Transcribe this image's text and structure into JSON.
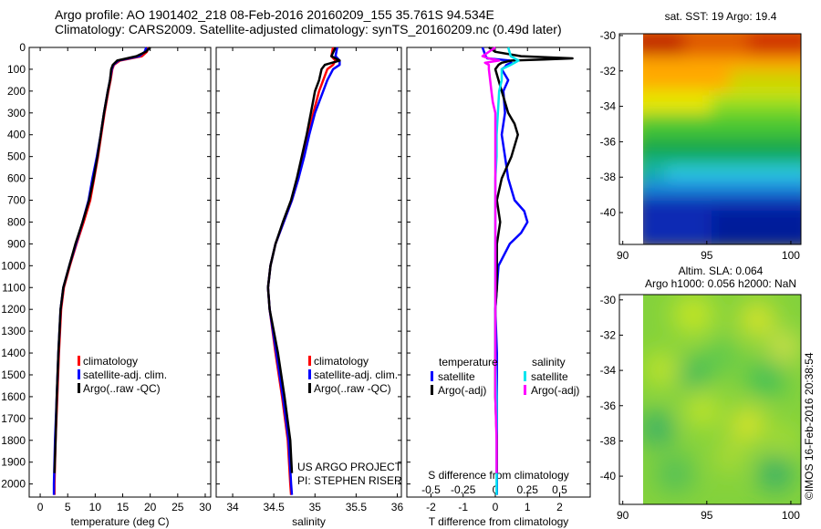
{
  "header": {
    "line1": "Argo profile: AO 1901402_218 08-Feb-2016 20160209_155 35.761S 94.534E",
    "line2": "Climatology: CARS2009. Satellite-adjusted climatology: synTS_20160209.nc (0.49d later)"
  },
  "credit": {
    "project": "US ARGO PROJECT",
    "pi": "PI: STEPHEN RISER",
    "stamp": "©IMOS 16-Feb-2016 20:38:54"
  },
  "colors": {
    "climatology": "#ff0000",
    "satellite": "#0000ff",
    "argo": "#000000",
    "s_satellite": "#00e5ee",
    "s_argo": "#ff00ff"
  },
  "chart_data": [
    {
      "type": "line",
      "xlabel": "temperature (deg C)",
      "xticks": [
        "0",
        "5",
        "10",
        "15",
        "20",
        "25",
        "30"
      ],
      "xlim": [
        -2,
        31
      ],
      "yticks": [
        "0",
        "100",
        "200",
        "300",
        "400",
        "500",
        "600",
        "700",
        "800",
        "900",
        "1000",
        "1100",
        "1200",
        "1300",
        "1400",
        "1500",
        "1600",
        "1700",
        "1800",
        "1900",
        "2000"
      ],
      "ylim": [
        2060,
        0
      ],
      "legend": [
        "climatology",
        "satellite-adj. clim.",
        "Argo(..raw -QC)"
      ],
      "legend_position": "lower-right",
      "series": [
        {
          "name": "climatology",
          "depth": [
            0,
            20,
            40,
            60,
            80,
            100,
            150,
            200,
            300,
            400,
            500,
            600,
            700,
            800,
            900,
            1000,
            1100,
            1200,
            1400,
            1600,
            1800,
            2000,
            2050
          ],
          "values": [
            19.7,
            19.4,
            18.5,
            14.5,
            13.4,
            13.1,
            12.8,
            12.4,
            11.7,
            11.1,
            10.5,
            9.8,
            9.1,
            7.9,
            6.6,
            5.4,
            4.3,
            3.8,
            3.4,
            3.1,
            2.8,
            2.6,
            2.6
          ]
        },
        {
          "name": "satellite-adj. clim.",
          "depth": [
            0,
            20,
            40,
            60,
            80,
            100,
            150,
            200,
            300,
            400,
            500,
            600,
            700,
            800,
            900,
            1000,
            1100,
            1200,
            1400,
            1600,
            1800,
            2000,
            2050
          ],
          "values": [
            19.3,
            19.0,
            18.0,
            14.2,
            13.3,
            13.0,
            12.7,
            12.3,
            11.6,
            11.0,
            10.3,
            9.5,
            8.8,
            7.7,
            6.5,
            5.3,
            4.2,
            3.7,
            3.3,
            3.0,
            2.7,
            2.5,
            2.5
          ]
        },
        {
          "name": "Argo(..raw -QC)",
          "depth": [
            0,
            20,
            40,
            60,
            80,
            100,
            150,
            200,
            300,
            400,
            500,
            600,
            700,
            800,
            900,
            1000,
            1100,
            1200,
            1400,
            1600,
            1800,
            1950
          ],
          "values": [
            20.0,
            19.2,
            17.5,
            14.0,
            13.2,
            12.9,
            12.7,
            12.3,
            11.6,
            11.0,
            10.4,
            9.7,
            8.9,
            7.7,
            6.4,
            5.3,
            4.2,
            3.7,
            3.3,
            3.0,
            2.8,
            2.6
          ]
        }
      ]
    },
    {
      "type": "line",
      "xlabel": "salinity",
      "xticks": [
        "34",
        "34.5",
        "35",
        "35.5",
        "36"
      ],
      "xlim": [
        33.8,
        36.05
      ],
      "yticks": [
        "0",
        "100",
        "200",
        "300",
        "400",
        "500",
        "600",
        "700",
        "800",
        "900",
        "1000",
        "1100",
        "1200",
        "1300",
        "1400",
        "1500",
        "1600",
        "1700",
        "1800",
        "1900",
        "2000"
      ],
      "ylim": [
        2060,
        0
      ],
      "legend": [
        "climatology",
        "satellite-adj. clim.",
        "Argo(..raw -QC)"
      ],
      "legend_position": "lower-right",
      "series": [
        {
          "name": "climatology",
          "depth": [
            0,
            40,
            60,
            80,
            100,
            150,
            200,
            300,
            400,
            500,
            600,
            700,
            800,
            900,
            1000,
            1100,
            1200,
            1400,
            1600,
            1800,
            2000,
            2050
          ],
          "values": [
            35.22,
            35.2,
            35.25,
            35.22,
            35.15,
            35.1,
            35.05,
            34.98,
            34.92,
            34.86,
            34.8,
            34.72,
            34.62,
            34.52,
            34.46,
            34.43,
            34.45,
            34.52,
            34.6,
            34.67,
            34.7,
            34.71
          ]
        },
        {
          "name": "satellite-adj. clim.",
          "depth": [
            0,
            40,
            60,
            80,
            100,
            150,
            200,
            300,
            400,
            500,
            600,
            700,
            800,
            900,
            1000,
            1100,
            1200,
            1400,
            1600,
            1800,
            2000,
            2050
          ],
          "values": [
            35.27,
            35.25,
            35.3,
            35.3,
            35.22,
            35.15,
            35.1,
            35.0,
            34.93,
            34.87,
            34.8,
            34.72,
            34.62,
            34.52,
            34.46,
            34.43,
            34.45,
            34.53,
            34.61,
            34.68,
            34.71,
            34.72
          ]
        },
        {
          "name": "Argo(..raw -QC)",
          "depth": [
            0,
            40,
            60,
            80,
            100,
            150,
            200,
            300,
            400,
            500,
            600,
            700,
            800,
            900,
            1000,
            1100,
            1200,
            1400,
            1600,
            1800,
            1950
          ],
          "values": [
            35.25,
            35.2,
            35.3,
            35.12,
            35.08,
            35.05,
            35.0,
            34.95,
            34.9,
            34.84,
            34.78,
            34.71,
            34.61,
            34.52,
            34.46,
            34.43,
            34.45,
            34.55,
            34.63,
            34.7,
            34.72
          ]
        }
      ]
    },
    {
      "type": "line",
      "xlabel": "T difference from climatology",
      "xticks": [
        "-2",
        "-1",
        "0",
        "1",
        "2"
      ],
      "xlim": [
        -2.75,
        2.95
      ],
      "top_label": "S difference from climatology",
      "top_ticks": [
        "-0.5",
        "-0.25",
        "0",
        "0.25",
        "0.5"
      ],
      "top_lim": [
        -0.6875,
        0.7375
      ],
      "yticks": [
        "0",
        "100",
        "200",
        "300",
        "400",
        "500",
        "600",
        "700",
        "800",
        "900",
        "1000",
        "1100",
        "1200",
        "1300",
        "1400",
        "1500",
        "1600",
        "1700",
        "1800",
        "1900",
        "2000"
      ],
      "ylim": [
        2060,
        0
      ],
      "legend_groups": [
        "temperature",
        "salinity"
      ],
      "legend": [
        "satellite",
        "Argo(-adj)",
        "satellite",
        "Argo(-adj)"
      ],
      "legend_position": "lower-center",
      "series": [
        {
          "name": "satellite",
          "group": "temperature",
          "unit": "T",
          "depth": [
            0,
            40,
            50,
            60,
            70,
            80,
            90,
            100,
            150,
            200,
            300,
            400,
            500,
            600,
            700,
            750,
            800,
            850,
            900,
            1000,
            1100,
            1200,
            1400,
            1600,
            1800,
            2050
          ],
          "values": [
            -0.4,
            -0.3,
            -0.25,
            0.45,
            0.5,
            0.35,
            0.3,
            0.2,
            0.4,
            0.25,
            0.3,
            0.2,
            0.3,
            0.4,
            0.6,
            0.9,
            1.0,
            0.8,
            0.45,
            0.1,
            0.05,
            0.0,
            0.05,
            0.05,
            0.05,
            0.05
          ]
        },
        {
          "name": "Argo(-adj)",
          "group": "temperature",
          "unit": "T",
          "depth": [
            0,
            20,
            40,
            50,
            55,
            60,
            70,
            80,
            100,
            200,
            300,
            350,
            400,
            500,
            600,
            700,
            800,
            900,
            1000,
            1100,
            1200,
            1400,
            1600,
            1800,
            1950
          ],
          "values": [
            -0.2,
            0.0,
            0.8,
            2.4,
            1.5,
            0.5,
            0.2,
            0.1,
            0.0,
            0.2,
            0.4,
            0.6,
            0.7,
            0.5,
            0.2,
            0.05,
            0.15,
            0.05,
            0.05,
            0.05,
            0.0,
            0.0,
            0.0,
            0.05,
            0.05
          ]
        },
        {
          "name": "satellite",
          "group": "salinity",
          "unit": "S",
          "depth": [
            0,
            40,
            60,
            80,
            100,
            150,
            200,
            300,
            400,
            500,
            600,
            800,
            1000,
            1200,
            1400,
            1600,
            1800,
            2050
          ],
          "values": [
            0.1,
            0.12,
            0.18,
            0.12,
            0.05,
            0.05,
            0.03,
            0.02,
            0.01,
            0.01,
            0.0,
            0.0,
            0.0,
            0.0,
            0.0,
            0.01,
            0.01,
            0.01
          ]
        },
        {
          "name": "Argo(-adj)",
          "group": "salinity",
          "unit": "S",
          "depth": [
            0,
            40,
            50,
            60,
            70,
            80,
            100,
            150,
            200,
            250,
            300,
            400,
            500,
            600,
            800,
            1000,
            1200,
            1400,
            1600,
            1800,
            1950
          ],
          "values": [
            0.0,
            -0.1,
            -0.05,
            0.03,
            -0.08,
            -0.05,
            -0.05,
            -0.04,
            -0.03,
            -0.02,
            0.0,
            0.0,
            0.0,
            0.0,
            0.0,
            0.0,
            0.0,
            0.0,
            0.0,
            0.01,
            0.01
          ]
        }
      ]
    },
    {
      "type": "heatmap",
      "title": "sat. SST: 19 Argo: 19.4",
      "xticks": [
        "90",
        "95",
        "100"
      ],
      "xlim": [
        89.8,
        100.6
      ],
      "yticks": [
        "-30",
        "-32",
        "-34",
        "-36",
        "-38",
        "-40"
      ],
      "ylim": [
        -41.8,
        -29.9
      ]
    },
    {
      "type": "heatmap",
      "title": "Altim. SLA: 0.064",
      "subtitle": "Argo h1000: 0.056 h2000: NaN",
      "xticks": [
        "90",
        "95",
        "100"
      ],
      "xlim": [
        89.8,
        100.6
      ],
      "yticks": [
        "-30",
        "-32",
        "-34",
        "-36",
        "-38",
        "-40"
      ],
      "ylim": [
        -41.6,
        -29.7
      ]
    }
  ]
}
